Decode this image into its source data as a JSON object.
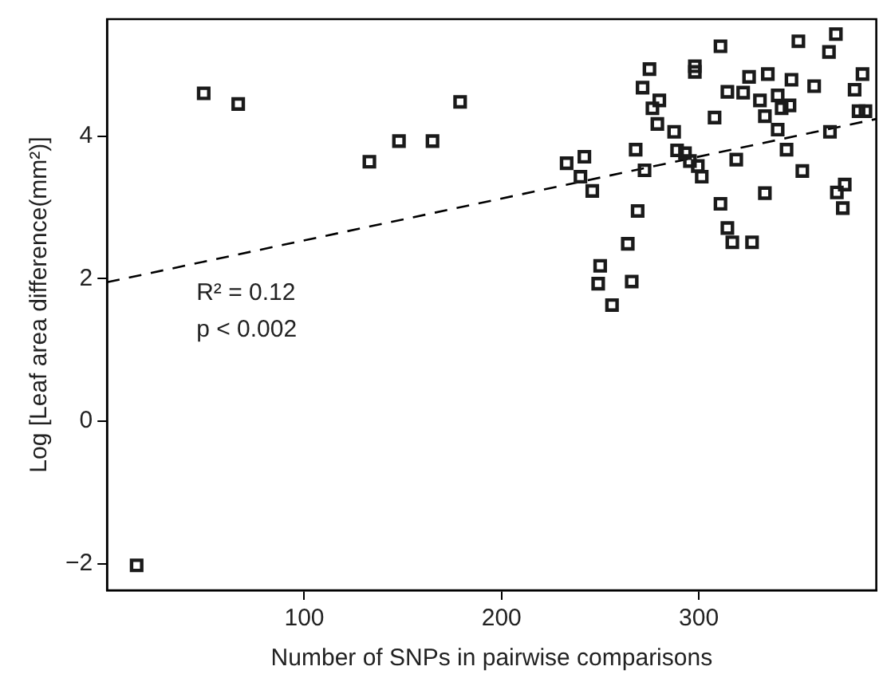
{
  "chart_data": {
    "type": "scatter",
    "xlabel": "Number of SNPs in pairwise comparisons",
    "ylabel": "Log [Leaf area difference(mm²)]",
    "xlim": [
      0,
      390
    ],
    "xticks": [
      100,
      200,
      300
    ],
    "ylim": [
      -2.37,
      5.64
    ],
    "yticks": [
      -2,
      0,
      2,
      4
    ],
    "grid": false,
    "legend": false,
    "marker": "square",
    "annotations": [
      "R² = 0.12",
      "p < 0.002"
    ],
    "series": [
      {
        "color": "#1a1a1a",
        "x": [
          15,
          49,
          66.5,
          133,
          148,
          165,
          179,
          233,
          242,
          240,
          246,
          268,
          272.5,
          269,
          264,
          250,
          249,
          266,
          256,
          275,
          271.5,
          280,
          276.5,
          279,
          287.5,
          289,
          293,
          295.5,
          299.5,
          301.5,
          298,
          298,
          311,
          308,
          314.5,
          319,
          311,
          314.5,
          317,
          327,
          333.5,
          325.5,
          322.5,
          335,
          331,
          333.5,
          340,
          342,
          347,
          346,
          340,
          344.5,
          352.5,
          358.5,
          350.5,
          366,
          369.5,
          366.5,
          379,
          383,
          384.5,
          381,
          374,
          370,
          373
        ],
        "values": [
          -2.02,
          4.6,
          4.45,
          3.64,
          3.93,
          3.93,
          4.48,
          3.62,
          3.71,
          3.43,
          3.23,
          3.81,
          3.52,
          2.95,
          2.49,
          2.18,
          1.93,
          1.96,
          1.63,
          4.94,
          4.68,
          4.5,
          4.39,
          4.17,
          4.06,
          3.8,
          3.76,
          3.65,
          3.58,
          3.43,
          4.98,
          4.9,
          5.26,
          4.26,
          4.62,
          3.67,
          3.05,
          2.71,
          2.51,
          2.51,
          3.2,
          4.83,
          4.61,
          4.87,
          4.5,
          4.28,
          4.57,
          4.39,
          4.79,
          4.43,
          4.09,
          3.81,
          3.51,
          4.7,
          5.33,
          5.18,
          5.43,
          4.06,
          4.65,
          4.87,
          4.35,
          4.35,
          3.32,
          3.21,
          2.99
        ]
      },
      {
        "type": "line",
        "color": "#000000",
        "line_style": "dashed",
        "marker": "none",
        "x": [
          0,
          390
        ],
        "values": [
          1.95,
          4.24
        ]
      }
    ]
  }
}
